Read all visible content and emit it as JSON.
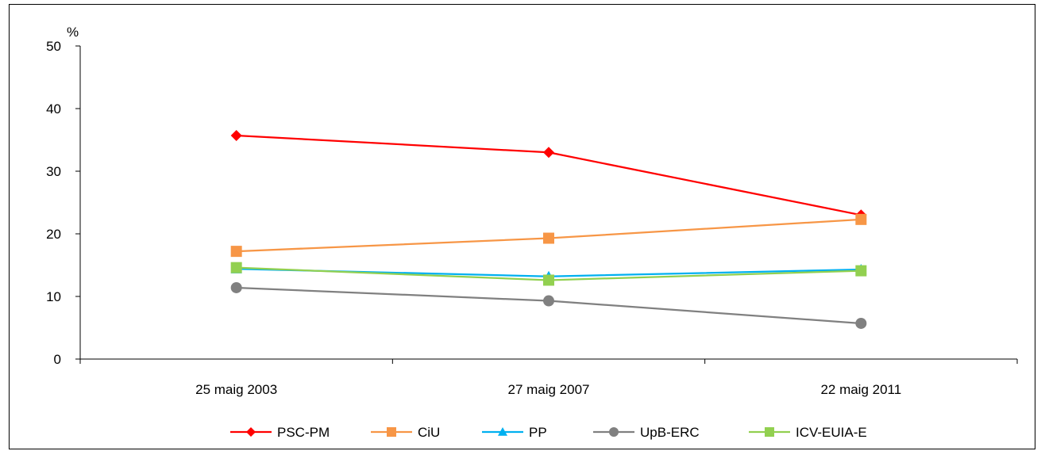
{
  "chart_data": {
    "type": "line",
    "ylabel": "%",
    "ylim": [
      0,
      50
    ],
    "yticks": [
      0,
      10,
      20,
      30,
      40,
      50
    ],
    "categories": [
      "25 maig 2003",
      "27 maig 2007",
      "22 maig 2011"
    ],
    "grid": false,
    "legend_position": "bottom",
    "series": [
      {
        "name": "PSC-PM",
        "values": [
          35.7,
          33.0,
          23.0
        ],
        "color": "#ff0000",
        "marker": "diamond"
      },
      {
        "name": "CiU",
        "values": [
          17.2,
          19.3,
          22.3
        ],
        "color": "#f79646",
        "marker": "square"
      },
      {
        "name": "PP",
        "values": [
          14.4,
          13.2,
          14.3
        ],
        "color": "#00b0f0",
        "marker": "triangle"
      },
      {
        "name": "UpB-ERC",
        "values": [
          11.4,
          9.3,
          5.7
        ],
        "color": "#808080",
        "marker": "circle"
      },
      {
        "name": "ICV-EUIA-E",
        "values": [
          14.6,
          12.6,
          14.1
        ],
        "color": "#92d050",
        "marker": "square"
      }
    ]
  }
}
